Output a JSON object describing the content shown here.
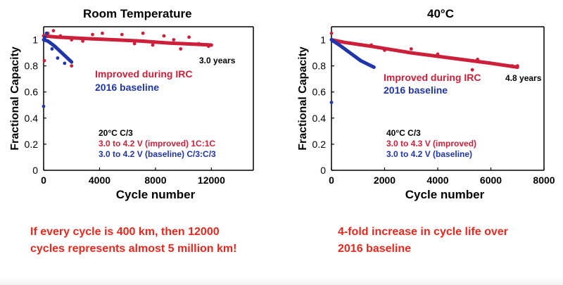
{
  "colors": {
    "improved": "#cc1f3a",
    "baseline": "#1f35a8",
    "caption": "#e8281e",
    "axis": "#000000"
  },
  "captions": {
    "left": "If every cycle is 400 km, then 12000\ncycles represents almost 5 million km!",
    "right": "4-fold increase in cycle life over\n2016 baseline"
  },
  "chart_data": [
    {
      "type": "scatter",
      "title": "Room Temperature",
      "xlabel": "Cycle number",
      "ylabel": "Fractional Capacity",
      "xlim": [
        0,
        15000
      ],
      "ylim": [
        0,
        1.1
      ],
      "xticks": [
        0,
        4000,
        8000,
        12000
      ],
      "yticks": [
        0,
        0.2,
        0.4,
        0.6,
        0.8,
        1
      ],
      "grid": false,
      "legend": "center",
      "legend_entries": [
        "Improved during IRC",
        "2016 baseline"
      ],
      "conditions": [
        {
          "text": "20°C C/3",
          "color": "#000000"
        },
        {
          "text": "3.0 to 4.2 V (improved) 1C:1C",
          "color": "#cc1f3a"
        },
        {
          "text": "3.0 to 4.2 V (baseline) C/3:C/3",
          "color": "#1f35a8"
        }
      ],
      "annotation": {
        "text": "3.0 years",
        "x": 13200,
        "y": 0.93
      },
      "series": [
        {
          "name": "Improved during IRC",
          "color": "#cc1f3a",
          "curve": [
            [
              0,
              1.03
            ],
            [
              1000,
              1.02
            ],
            [
              3000,
              1.01
            ],
            [
              5000,
              1.0
            ],
            [
              7000,
              0.99
            ],
            [
              9000,
              0.975
            ],
            [
              11000,
              0.965
            ],
            [
              12000,
              0.96
            ]
          ],
          "points": [
            [
              50,
              0.84
            ],
            [
              300,
              1.05
            ],
            [
              700,
              1.07
            ],
            [
              1200,
              1.03
            ],
            [
              2000,
              1.0
            ],
            [
              2800,
              0.99
            ],
            [
              3500,
              1.04
            ],
            [
              4200,
              1.05
            ],
            [
              5000,
              1.0
            ],
            [
              5600,
              1.04
            ],
            [
              6500,
              0.97
            ],
            [
              7100,
              1.05
            ],
            [
              7800,
              0.96
            ],
            [
              8600,
              1.03
            ],
            [
              9300,
              1.0
            ],
            [
              9800,
              0.93
            ],
            [
              10400,
              1.02
            ],
            [
              11100,
              0.97
            ],
            [
              11800,
              0.95
            ],
            [
              2000,
              0.8
            ]
          ]
        },
        {
          "name": "2016 baseline",
          "color": "#1f35a8",
          "curve": [
            [
              0,
              1.0
            ],
            [
              300,
              0.99
            ],
            [
              800,
              0.95
            ],
            [
              1400,
              0.89
            ],
            [
              2000,
              0.83
            ]
          ],
          "points": [
            [
              0,
              0.49
            ],
            [
              100,
              1.02
            ],
            [
              200,
              1.05
            ],
            [
              600,
              0.93
            ],
            [
              1000,
              0.86
            ],
            [
              1500,
              0.82
            ]
          ]
        }
      ]
    },
    {
      "type": "scatter",
      "title": "40°C",
      "xlabel": "Cycle number",
      "ylabel": "Fractional Capacity",
      "xlim": [
        0,
        8000
      ],
      "ylim": [
        0,
        1.1
      ],
      "xticks": [
        0,
        2000,
        4000,
        6000,
        8000
      ],
      "yticks": [
        0,
        0.2,
        0.4,
        0.6,
        0.8,
        1
      ],
      "grid": false,
      "legend": "center",
      "legend_entries": [
        "Improved during IRC",
        "2016 baseline"
      ],
      "conditions": [
        {
          "text": "40°C C/3",
          "color": "#000000"
        },
        {
          "text": "3.0 to 4.3 V (improved)",
          "color": "#cc1f3a"
        },
        {
          "text": "3.0 to 4.2 V (baseline)",
          "color": "#1f35a8"
        }
      ],
      "annotation": {
        "text": "4.8 years",
        "x": 7900,
        "y": 0.77
      },
      "series": [
        {
          "name": "Improved during IRC",
          "color": "#cc1f3a",
          "curve": [
            [
              0,
              1.0
            ],
            [
              500,
              0.98
            ],
            [
              1500,
              0.95
            ],
            [
              3000,
              0.9
            ],
            [
              4500,
              0.86
            ],
            [
              6000,
              0.82
            ],
            [
              7000,
              0.79
            ]
          ],
          "points": [
            [
              0,
              1.05
            ],
            [
              1500,
              0.96
            ],
            [
              2000,
              0.92
            ],
            [
              3000,
              0.93
            ],
            [
              4000,
              0.89
            ],
            [
              5300,
              0.77
            ],
            [
              5500,
              0.85
            ],
            [
              6800,
              0.8
            ],
            [
              7000,
              0.8
            ]
          ]
        },
        {
          "name": "2016 baseline",
          "color": "#1f35a8",
          "curve": [
            [
              0,
              1.0
            ],
            [
              300,
              0.96
            ],
            [
              700,
              0.9
            ],
            [
              1100,
              0.84
            ],
            [
              1600,
              0.79
            ]
          ],
          "points": [
            [
              0,
              0.52
            ],
            [
              50,
              0.99
            ]
          ]
        }
      ]
    }
  ]
}
